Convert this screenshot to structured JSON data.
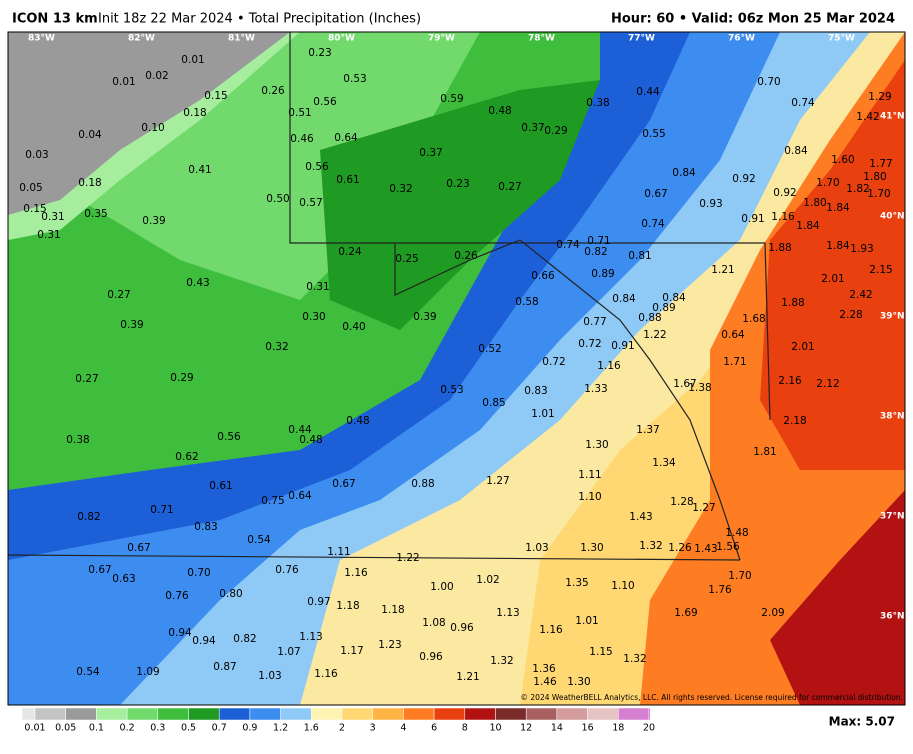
{
  "header": {
    "model": "ICON 13 km",
    "title": "Init 18z 22 Mar 2024 • Total Precipitation (Inches)",
    "valid": "Hour: 60 • Valid: 06z Mon 25 Mar 2024"
  },
  "map": {
    "lon_labels": [
      "83°W",
      "82°W",
      "81°W",
      "80°W",
      "79°W",
      "78°W",
      "77°W",
      "76°W",
      "75°W"
    ],
    "lat_labels": [
      "41°N",
      "40°N",
      "39°N",
      "38°N",
      "37°N",
      "36°N"
    ],
    "values": [
      "0.23",
      "0.01",
      "0.02",
      "0.01",
      "0.53",
      "0.26",
      "0.15",
      "0.56",
      "0.59",
      "0.38",
      "0.44",
      "0.70",
      "0.74",
      "1.29",
      "0.18",
      "0.51",
      "0.48",
      "0.04",
      "0.10",
      "0.37",
      "0.29",
      "0.55",
      "1.42",
      "0.46",
      "0.64",
      "0.37",
      "0.84",
      "0.03",
      "0.41",
      "0.56",
      "0.84",
      "0.92",
      "1.60",
      "1.77",
      "0.61",
      "0.32",
      "0.23",
      "0.27",
      "1.70",
      "1.82",
      "1.80",
      "0.05",
      "0.18",
      "0.67",
      "0.92",
      "1.70",
      "0.50",
      "0.57",
      "0.93",
      "1.80",
      "1.84",
      "0.15",
      "0.31",
      "0.35",
      "0.39",
      "0.74",
      "0.91",
      "1.16",
      "0.31",
      "1.84",
      "0.24",
      "0.25",
      "0.26",
      "0.74",
      "0.71",
      "0.82",
      "0.81",
      "1.88",
      "1.84",
      "1.93",
      "0.66",
      "0.89",
      "1.21",
      "2.01",
      "2.15",
      "0.43",
      "0.31",
      "0.27",
      "0.84",
      "0.84",
      "0.58",
      "0.89",
      "1.88",
      "2.42",
      "0.30",
      "0.39",
      "0.88",
      "0.77",
      "1.68",
      "2.28",
      "0.39",
      "0.40",
      "1.22",
      "0.64",
      "0.32",
      "0.52",
      "0.72",
      "0.91",
      "2.01",
      "0.72",
      "1.16",
      "1.71",
      "0.27",
      "0.29",
      "1.33",
      "1.67",
      "1.38",
      "2.16",
      "2.12",
      "0.53",
      "0.83",
      "0.85",
      "1.01",
      "0.48",
      "2.18",
      "0.44",
      "0.48",
      "0.56",
      "1.37",
      "0.38",
      "1.30",
      "1.81",
      "0.62",
      "1.34",
      "1.11",
      "1.27",
      "0.88",
      "0.67",
      "0.61",
      "1.10",
      "0.75",
      "0.64",
      "1.28",
      "1.27",
      "0.71",
      "0.83",
      "1.43",
      "0.82",
      "1.48",
      "0.54",
      "0.67",
      "1.03",
      "1.30",
      "1.32",
      "1.26",
      "1.43",
      "1.56",
      "1.11",
      "1.22",
      "0.76",
      "0.67",
      "0.70",
      "1.16",
      "1.70",
      "0.63",
      "1.00",
      "1.02",
      "1.35",
      "1.10",
      "1.76",
      "0.76",
      "0.80",
      "0.97",
      "1.18",
      "1.18",
      "1.13",
      "1.01",
      "1.69",
      "2.09",
      "1.08",
      "0.96",
      "0.94",
      "0.94",
      "0.82",
      "1.13",
      "1.16",
      "1.17",
      "1.23",
      "1.07",
      "1.15",
      "0.96",
      "1.32",
      "1.32",
      "0.54",
      "1.09",
      "0.87",
      "1.03",
      "1.16",
      "1.36",
      "1.21",
      "1.46",
      "1.30"
    ],
    "copyright": "© 2024 WeatherBELL Analytics, LLC. All rights reserved. License required for commercial distribution."
  },
  "legend": {
    "labels": [
      "0.01",
      "0.05",
      "0.1",
      "0.2",
      "0.3",
      "0.5",
      "0.7",
      "0.9",
      "1.2",
      "1.6",
      "2",
      "3",
      "4",
      "6",
      "8",
      "10",
      "12",
      "14",
      "16",
      "18",
      "20"
    ],
    "colors": [
      "#e6e6e6",
      "#c4c4c4",
      "#9a9a9a",
      "#a6ee9e",
      "#72da6c",
      "#3fbd3d",
      "#1f9a22",
      "#1d5fd6",
      "#3d8cf0",
      "#8fcaf6",
      "#fff3b2",
      "#ffd874",
      "#ffb444",
      "#ff7d22",
      "#e8400f",
      "#b21212",
      "#7c2b2b",
      "#a86060",
      "#d49c9c",
      "#e6c4c4",
      "#d47fd0",
      "#a020a8"
    ],
    "max": "Max: 5.07"
  }
}
